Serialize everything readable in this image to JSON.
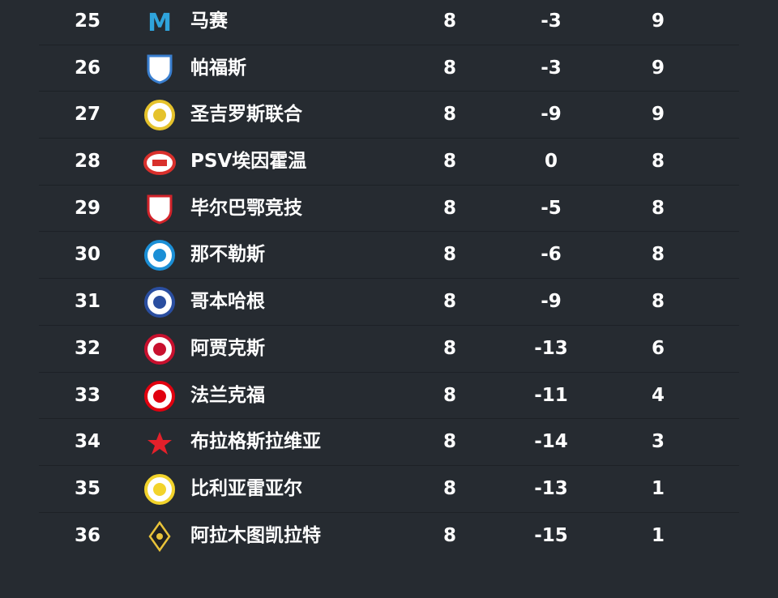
{
  "standings": [
    {
      "rank": "25",
      "team": "马赛",
      "played": "8",
      "gd": "-3",
      "pts": "9",
      "logo": "marseille-crest-icon",
      "color": "#2fa4dc"
    },
    {
      "rank": "26",
      "team": "帕福斯",
      "played": "8",
      "gd": "-3",
      "pts": "9",
      "logo": "pafos-crest-icon",
      "color": "#3a7fd0"
    },
    {
      "rank": "27",
      "team": "圣吉罗斯联合",
      "played": "8",
      "gd": "-9",
      "pts": "9",
      "logo": "union-sg-crest-icon",
      "color": "#e5c22b"
    },
    {
      "rank": "28",
      "team": "PSV埃因霍温",
      "played": "8",
      "gd": "0",
      "pts": "8",
      "logo": "psv-crest-icon",
      "color": "#d9302c"
    },
    {
      "rank": "29",
      "team": "毕尔巴鄂竞技",
      "played": "8",
      "gd": "-5",
      "pts": "8",
      "logo": "athletic-bilbao-crest-icon",
      "color": "#d2232a"
    },
    {
      "rank": "30",
      "team": "那不勒斯",
      "played": "8",
      "gd": "-6",
      "pts": "8",
      "logo": "napoli-crest-icon",
      "color": "#1b8fd6"
    },
    {
      "rank": "31",
      "team": "哥本哈根",
      "played": "8",
      "gd": "-9",
      "pts": "8",
      "logo": "copenhagen-crest-icon",
      "color": "#2a4ea0"
    },
    {
      "rank": "32",
      "team": "阿贾克斯",
      "played": "8",
      "gd": "-13",
      "pts": "6",
      "logo": "ajax-crest-icon",
      "color": "#c8102e"
    },
    {
      "rank": "33",
      "team": "法兰克福",
      "played": "8",
      "gd": "-11",
      "pts": "4",
      "logo": "frankfurt-crest-icon",
      "color": "#e1000f"
    },
    {
      "rank": "34",
      "team": "布拉格斯拉维亚",
      "played": "8",
      "gd": "-14",
      "pts": "3",
      "logo": "slavia-star-icon",
      "color": "#e4202a"
    },
    {
      "rank": "35",
      "team": "比利亚雷亚尔",
      "played": "8",
      "gd": "-13",
      "pts": "1",
      "logo": "villarreal-crest-icon",
      "color": "#f2d32b"
    },
    {
      "rank": "36",
      "team": "阿拉木图凯拉特",
      "played": "8",
      "gd": "-15",
      "pts": "1",
      "logo": "kairat-crest-icon",
      "color": "#e9c33a"
    }
  ]
}
